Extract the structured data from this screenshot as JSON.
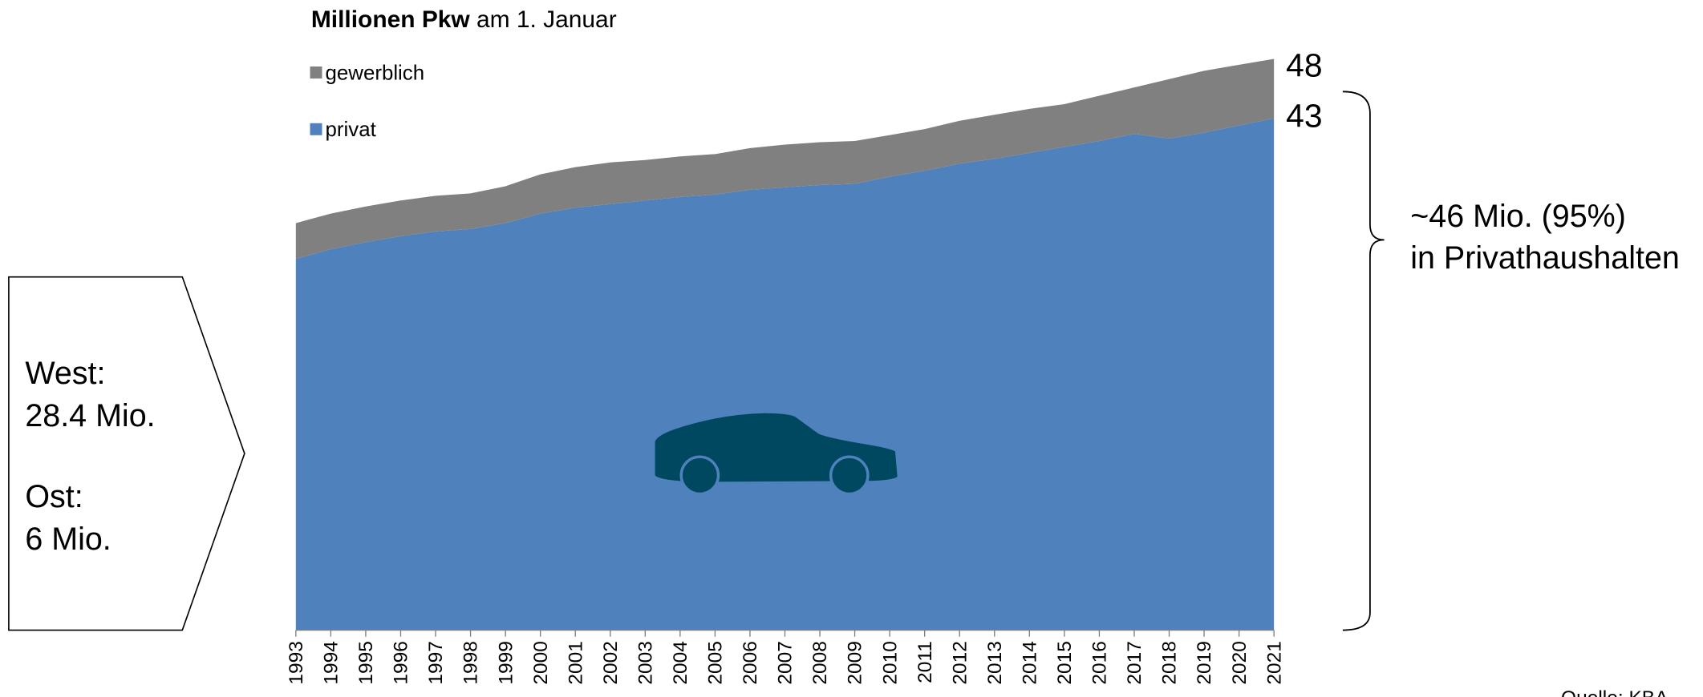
{
  "chart_data": {
    "type": "stacked_area",
    "title_bold": "Millionen Pkw",
    "title_rest": " am 1. Januar",
    "categories": [
      "1993",
      "1994",
      "1995",
      "1996",
      "1997",
      "1998",
      "1999",
      "2000",
      "2001",
      "2002",
      "2003",
      "2004",
      "2005",
      "2006",
      "2007",
      "2008",
      "2009",
      "2010",
      "2011",
      "2012",
      "2013",
      "2014",
      "2015",
      "2016",
      "2017",
      "2018",
      "2019",
      "2020",
      "2021"
    ],
    "series": [
      {
        "name": "privat",
        "color": "#4f81bd",
        "values": [
          31.2,
          32.0,
          32.6,
          33.1,
          33.5,
          33.7,
          34.2,
          35.0,
          35.5,
          35.8,
          36.1,
          36.4,
          36.6,
          37.0,
          37.2,
          37.4,
          37.5,
          38.1,
          38.6,
          39.2,
          39.6,
          40.1,
          40.6,
          41.1,
          41.7,
          41.3,
          41.8,
          42.4,
          43.0
        ]
      },
      {
        "name": "gewerblich",
        "color": "#808080",
        "values": [
          3.0,
          3.0,
          3.0,
          3.0,
          3.0,
          3.0,
          3.1,
          3.3,
          3.4,
          3.5,
          3.4,
          3.4,
          3.4,
          3.5,
          3.6,
          3.6,
          3.6,
          3.5,
          3.5,
          3.6,
          3.7,
          3.7,
          3.6,
          3.8,
          3.9,
          5.0,
          5.2,
          5.1,
          5.0
        ]
      }
    ],
    "end_label_total": "48",
    "end_label_privat": "43",
    "bracket_label": [
      "~46 Mio. (95%)",
      "in Privathaushalten"
    ],
    "box_labels": [
      "West:",
      "28.4 Mio.",
      "Ost:",
      "6 Mio."
    ],
    "source": "Quelle: KBA"
  }
}
